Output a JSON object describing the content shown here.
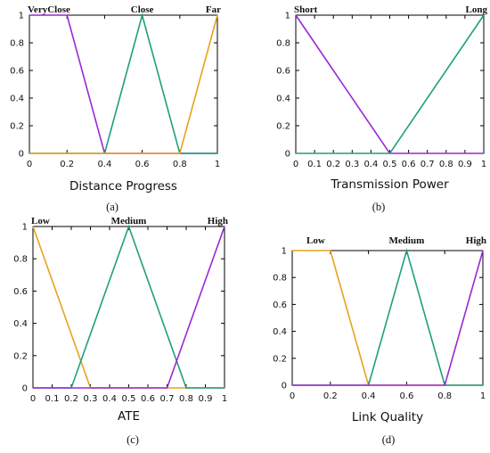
{
  "chart_data": [
    {
      "id": "a",
      "type": "line",
      "caption": "(a)",
      "xlabel": "Distance Progress",
      "ylabel": "",
      "xlim": [
        0,
        1
      ],
      "ylim": [
        0,
        1
      ],
      "xticks": [
        "0",
        "0.2",
        "0.4",
        "0.6",
        "0.8",
        "1"
      ],
      "xtick_values": [
        0,
        0.2,
        0.4,
        0.6,
        0.8,
        1
      ],
      "yticks": [
        "0",
        "0.2",
        "0.4",
        "0.6",
        "0.8",
        "1"
      ],
      "ytick_values": [
        0,
        0.2,
        0.4,
        0.6,
        0.8,
        1
      ],
      "grid": false,
      "series": [
        {
          "name": "VeryClose",
          "color": "#9b27d6",
          "x": [
            0,
            0.2,
            0.4,
            1
          ],
          "y": [
            1,
            1,
            0,
            0
          ]
        },
        {
          "name": "Close",
          "color": "#1f9e7e",
          "x": [
            0,
            0.4,
            0.6,
            0.8,
            1
          ],
          "y": [
            0,
            0,
            1,
            0,
            0
          ]
        },
        {
          "name": "Far",
          "color": "#e8a21a",
          "x": [
            0,
            0.8,
            1
          ],
          "y": [
            0,
            0,
            1
          ]
        }
      ]
    },
    {
      "id": "b",
      "type": "line",
      "caption": "(b)",
      "xlabel": "Transmission Power",
      "ylabel": "",
      "xlim": [
        0,
        1
      ],
      "ylim": [
        0,
        1
      ],
      "xticks": [
        "0",
        "0.1",
        "0.2",
        "0.3",
        "0.4",
        "0.5",
        "0.6",
        "0.7",
        "0.8",
        "0.9",
        "1"
      ],
      "xtick_values": [
        0,
        0.1,
        0.2,
        0.3,
        0.4,
        0.5,
        0.6,
        0.7,
        0.8,
        0.9,
        1
      ],
      "yticks": [
        "0",
        "0.2",
        "0.4",
        "0.6",
        "0.8",
        "1"
      ],
      "ytick_values": [
        0,
        0.2,
        0.4,
        0.6,
        0.8,
        1
      ],
      "grid": false,
      "series": [
        {
          "name": "Short",
          "color": "#9b27d6",
          "x": [
            0,
            0.5,
            1
          ],
          "y": [
            1,
            0,
            0
          ]
        },
        {
          "name": "Long",
          "color": "#1f9e7e",
          "x": [
            0,
            0.5,
            1
          ],
          "y": [
            0,
            0,
            1
          ]
        }
      ]
    },
    {
      "id": "c",
      "type": "line",
      "caption": "(c)",
      "xlabel": "ATE",
      "ylabel": "",
      "xlim": [
        0,
        1
      ],
      "ylim": [
        0,
        1
      ],
      "xticks": [
        "0",
        "0.1",
        "0.2",
        "0.3",
        "0.4",
        "0.5",
        "0.6",
        "0.7",
        "0.8",
        "0.9",
        "1"
      ],
      "xtick_values": [
        0,
        0.1,
        0.2,
        0.3,
        0.4,
        0.5,
        0.6,
        0.7,
        0.8,
        0.9,
        1
      ],
      "yticks": [
        "0",
        "0.2",
        "0.4",
        "0.6",
        "0.8",
        "1"
      ],
      "ytick_values": [
        0,
        0.2,
        0.4,
        0.6,
        0.8,
        1
      ],
      "grid": false,
      "series": [
        {
          "name": "Low",
          "color": "#e8a21a",
          "x": [
            0,
            0.3,
            1
          ],
          "y": [
            1,
            0,
            0
          ]
        },
        {
          "name": "Medium",
          "color": "#1f9e7e",
          "x": [
            0,
            0.2,
            0.5,
            0.8,
            1
          ],
          "y": [
            0,
            0,
            1,
            0,
            0
          ]
        },
        {
          "name": "High",
          "color": "#9b27d6",
          "x": [
            0,
            0.7,
            1
          ],
          "y": [
            0,
            0,
            1
          ]
        }
      ]
    },
    {
      "id": "d",
      "type": "line",
      "caption": "(d)",
      "xlabel": "Link Quality",
      "ylabel": "",
      "xlim": [
        0,
        1
      ],
      "ylim": [
        0,
        1
      ],
      "xticks": [
        "0",
        "0.2",
        "0.4",
        "0.6",
        "0.8",
        "1"
      ],
      "xtick_values": [
        0,
        0.2,
        0.4,
        0.6,
        0.8,
        1
      ],
      "yticks": [
        "0",
        "0.2",
        "0.4",
        "0.6",
        "0.8",
        "1"
      ],
      "ytick_values": [
        0,
        0.2,
        0.4,
        0.6,
        0.8,
        1
      ],
      "grid": false,
      "series": [
        {
          "name": "Low",
          "color": "#e8a21a",
          "x": [
            0,
            0.2,
            0.4,
            1
          ],
          "y": [
            1,
            1,
            0,
            0
          ]
        },
        {
          "name": "Medium",
          "color": "#1f9e7e",
          "x": [
            0,
            0.4,
            0.6,
            0.8,
            1
          ],
          "y": [
            0,
            0,
            1,
            0,
            0
          ]
        },
        {
          "name": "High",
          "color": "#9b27d6",
          "x": [
            0,
            0.8,
            1
          ],
          "y": [
            0,
            0,
            1
          ]
        }
      ]
    }
  ]
}
